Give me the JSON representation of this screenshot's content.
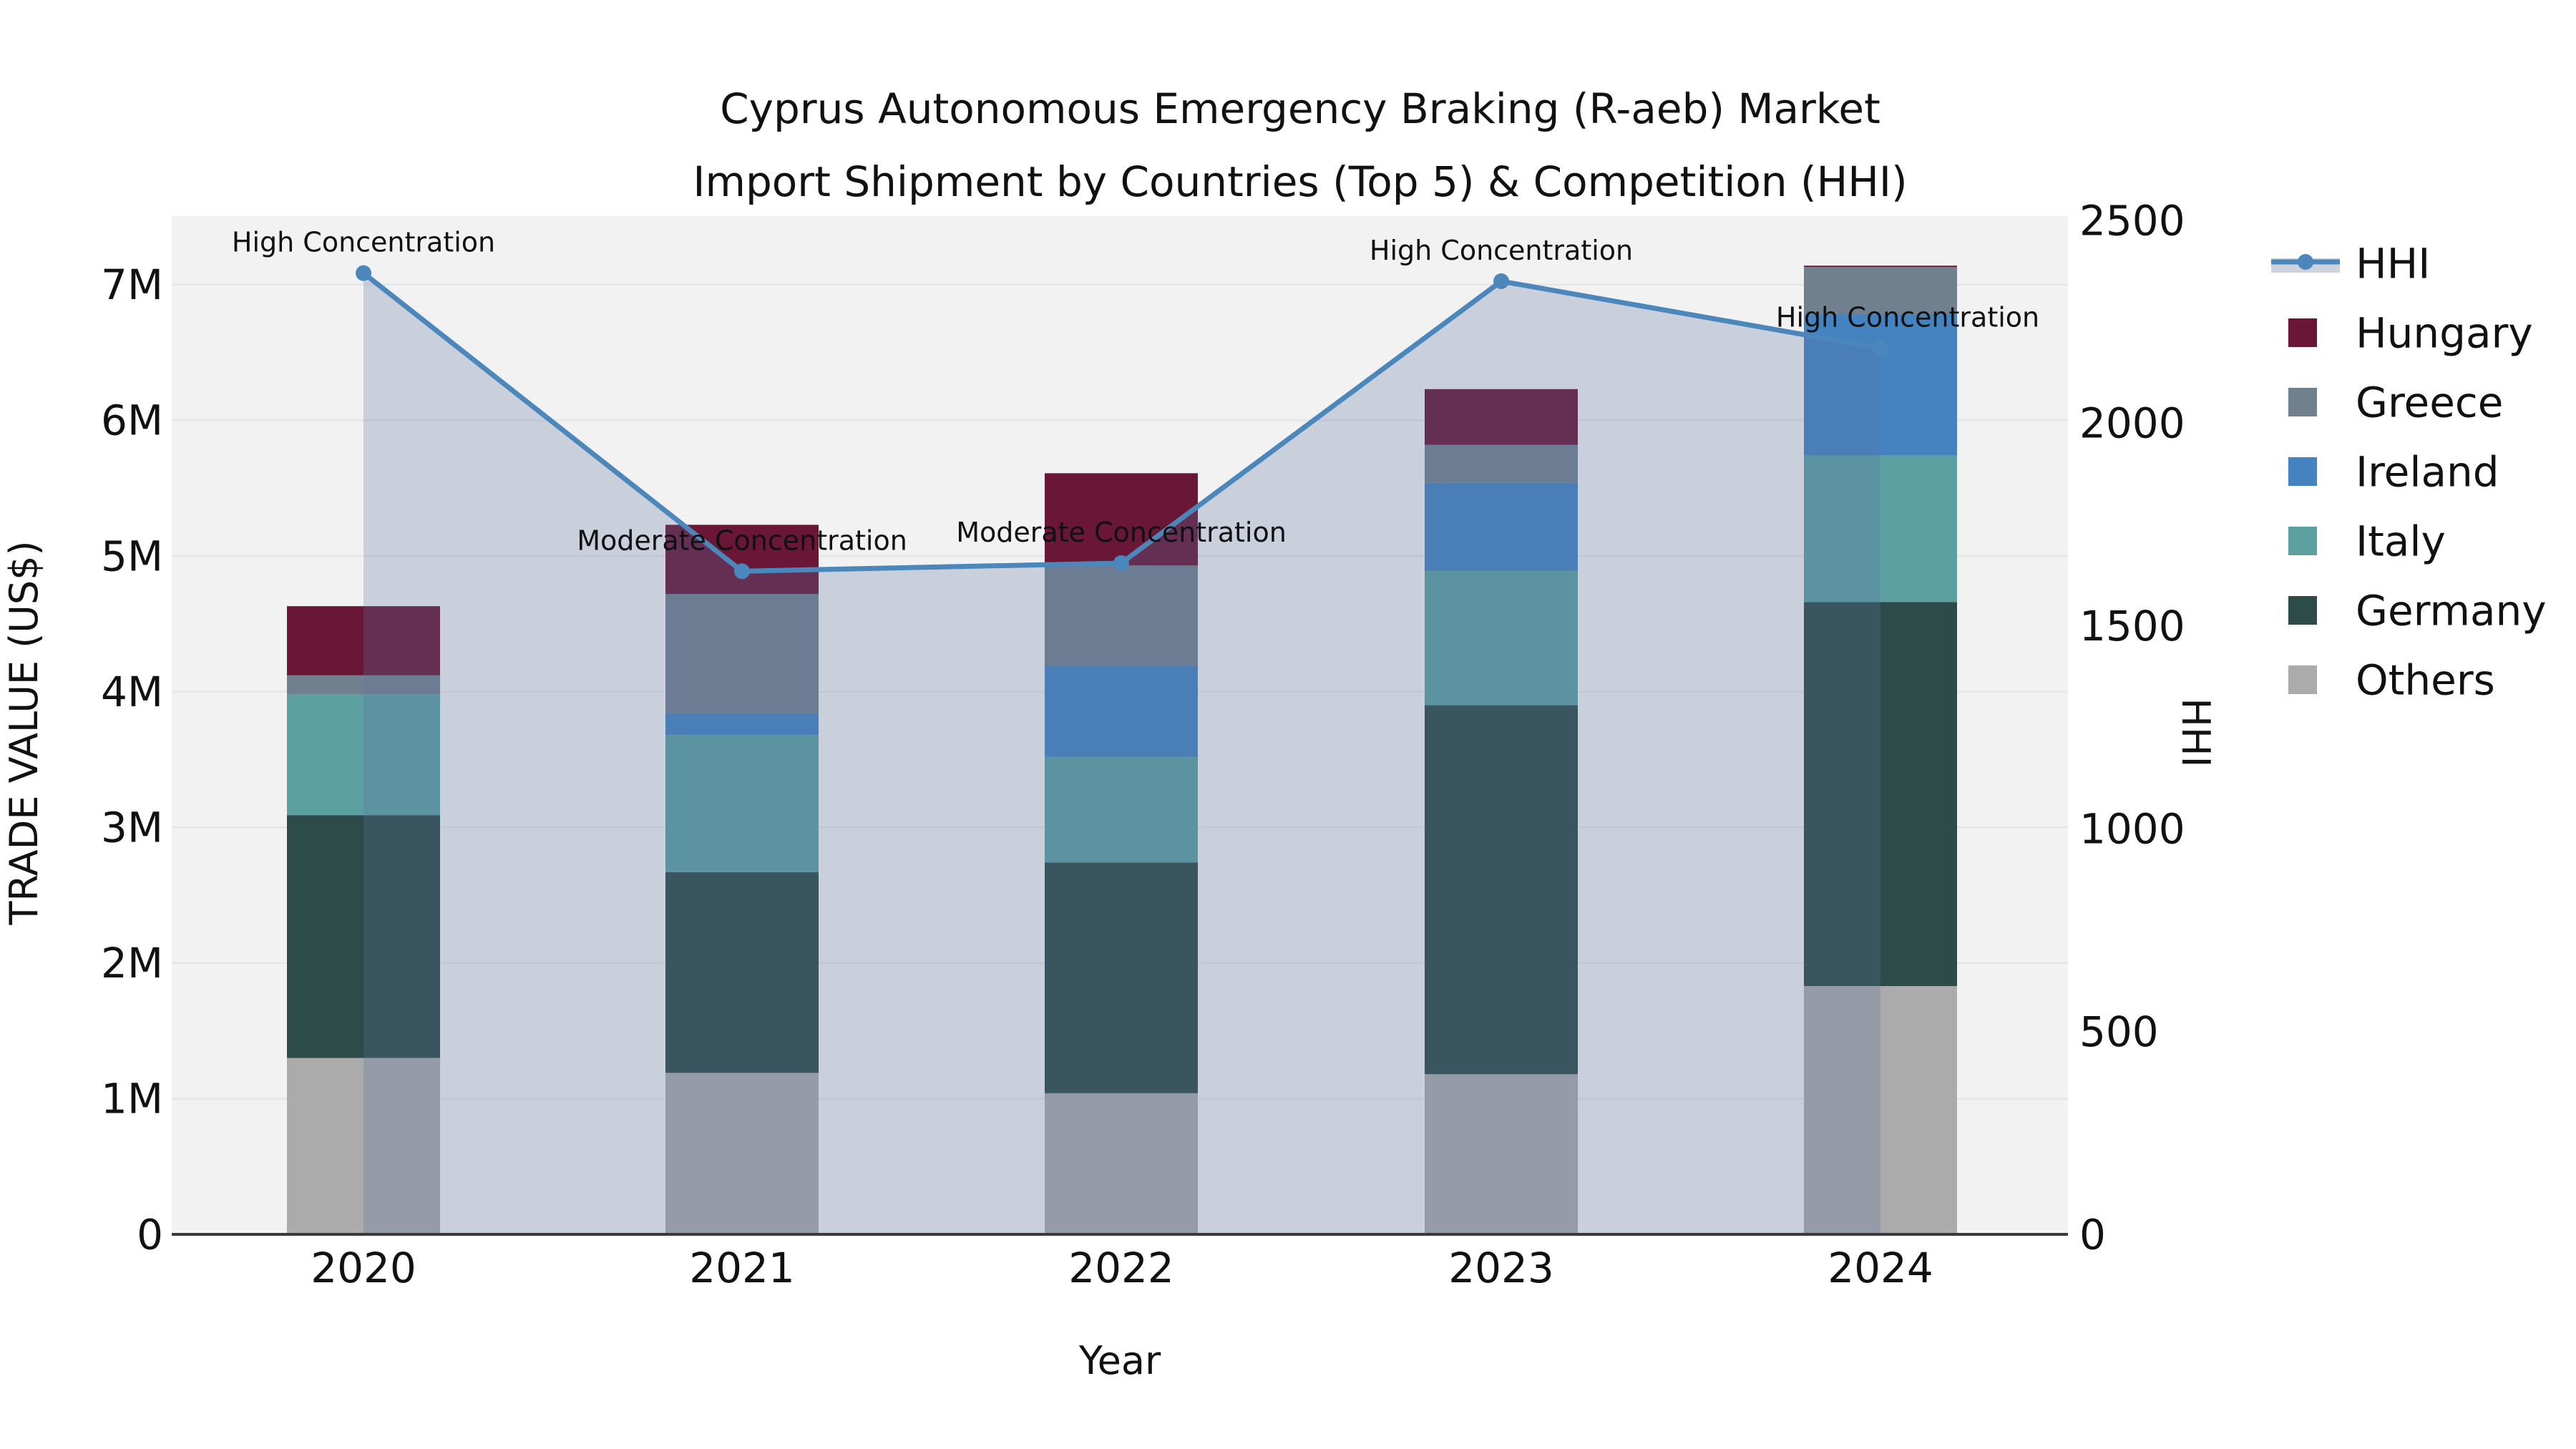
{
  "title": {
    "line1": "Cyprus Autonomous Emergency Braking (R-aeb) Market",
    "line2": "Import Shipment by Countries (Top 5) & Competition (HHI)"
  },
  "axes": {
    "x_label": "Year",
    "y_left_label": "TRADE VALUE (US$)",
    "y_right_label": "HHI",
    "y_left_ticks": [
      "0",
      "1M",
      "2M",
      "3M",
      "4M",
      "5M",
      "6M",
      "7M"
    ],
    "y_left_tick_values": [
      0,
      1,
      2,
      3,
      4,
      5,
      6,
      7
    ],
    "y_right_ticks": [
      "0",
      "500",
      "1000",
      "1500",
      "2000",
      "2500"
    ],
    "y_right_tick_values": [
      0,
      500,
      1000,
      1500,
      2000,
      2500
    ]
  },
  "colors": {
    "plot_background": "#f2f2f2",
    "gridline": "#e7e7e7",
    "axis_line": "#3a3a3a",
    "hhi_line": "#4c87bb",
    "hhi_area": "rgba(93,115,160,0.27)",
    "hhi_legend_band": "#ccd3de"
  },
  "chart_data": {
    "type": "combo: stacked bar (left axis, trade value US$) + line with area fill (right axis, HHI)",
    "categories": [
      "2020",
      "2021",
      "2022",
      "2023",
      "2024"
    ],
    "bar_unit": "US$ millions",
    "xlabel": "Year",
    "ylabel_left": "TRADE VALUE (US$)",
    "ylabel_right": "HHI",
    "ylim_left_m": [
      0,
      7.5
    ],
    "ylim_right": [
      0,
      2500
    ],
    "series": [
      {
        "name": "Others",
        "color": "#ababab",
        "values": [
          1.3,
          1.19,
          1.04,
          1.18,
          1.83
        ]
      },
      {
        "name": "Germany",
        "color": "#2d4b49",
        "values": [
          1.79,
          1.48,
          1.7,
          2.72,
          2.83
        ]
      },
      {
        "name": "Italy",
        "color": "#5ca0a1",
        "values": [
          0.89,
          1.01,
          0.78,
          0.99,
          1.08
        ]
      },
      {
        "name": "Ireland",
        "color": "#4483bf",
        "values": [
          0.0,
          0.16,
          0.67,
          0.65,
          1.04
        ]
      },
      {
        "name": "Greece",
        "color": "#71808f",
        "values": [
          0.14,
          0.88,
          0.74,
          0.28,
          0.35
        ]
      },
      {
        "name": "Hungary",
        "color": "#691637",
        "values": [
          0.51,
          0.51,
          0.68,
          0.41,
          0.01
        ]
      }
    ],
    "line_series": {
      "name": "HHI",
      "values": [
        2370,
        1635,
        1655,
        2350,
        2185
      ]
    },
    "annotations": [
      {
        "text": "High Concentration",
        "year_index": 0,
        "dx": 0
      },
      {
        "text": "Moderate Concentration",
        "year_index": 1,
        "dx": 0
      },
      {
        "text": "Moderate Concentration",
        "year_index": 2,
        "dx": 0
      },
      {
        "text": "High Concentration",
        "year_index": 3,
        "dx": 0
      },
      {
        "text": "High Concentration",
        "year_index": 4,
        "dx": 38
      }
    ],
    "legend": [
      "HHI",
      "Hungary",
      "Greece",
      "Ireland",
      "Italy",
      "Germany",
      "Others"
    ],
    "legend_position": "right"
  }
}
